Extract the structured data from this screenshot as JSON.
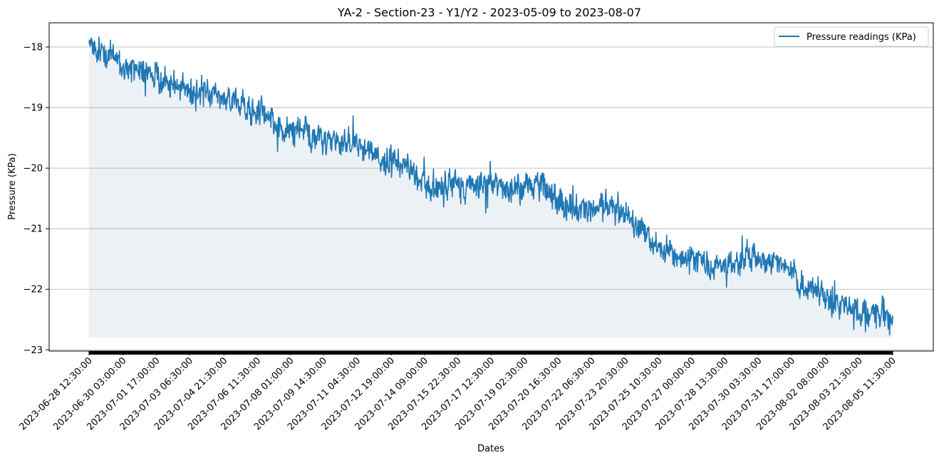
{
  "chart_data": {
    "type": "line",
    "title": "YA-2 - Section-23 - Y1/Y2 - 2023-05-09 to 2023-08-07",
    "xlabel": "Dates",
    "ylabel": "Pressure (KPa)",
    "ylim": [
      -23.02,
      -17.6
    ],
    "yticks": [
      -18,
      -19,
      -20,
      -21,
      -22,
      -23
    ],
    "ytick_labels": [
      "−18",
      "−19",
      "−20",
      "−21",
      "−22",
      "−23"
    ],
    "xlim": [
      "2023-06-28 12:30:00",
      "2023-08-05 11:30:00"
    ],
    "xtick_labels": [
      "2023-06-28 12:30:00",
      "2023-06-30 03:00:00",
      "2023-07-01 17:00:00",
      "2023-07-03 06:30:00",
      "2023-07-04 21:30:00",
      "2023-07-06 11:30:00",
      "2023-07-08 01:00:00",
      "2023-07-09 14:30:00",
      "2023-07-11 04:30:00",
      "2023-07-12 19:00:00",
      "2023-07-14 09:00:00",
      "2023-07-15 22:30:00",
      "2023-07-17 12:30:00",
      "2023-07-19 02:30:00",
      "2023-07-20 16:30:00",
      "2023-07-22 06:30:00",
      "2023-07-23 20:30:00",
      "2023-07-25 10:30:00",
      "2023-07-27 00:00:00",
      "2023-07-28 13:30:00",
      "2023-07-30 03:30:00",
      "2023-07-31 17:00:00",
      "2023-08-02 08:00:00",
      "2023-08-03 21:30:00",
      "2023-08-05 11:30:00"
    ],
    "fill_baseline": -22.8,
    "grid": "horizontal",
    "legend_position": "top-right",
    "series": [
      {
        "name": "Pressure readings (KPa)",
        "color": "#1f77b4",
        "x": [
          "2023-06-28 12:30:00",
          "2023-06-29 06:00:00",
          "2023-06-30 03:00:00",
          "2023-06-30 22:00:00",
          "2023-07-01 17:00:00",
          "2023-07-02 12:00:00",
          "2023-07-03 06:30:00",
          "2023-07-04 02:00:00",
          "2023-07-04 21:30:00",
          "2023-07-05 16:30:00",
          "2023-07-06 11:30:00",
          "2023-07-07 06:00:00",
          "2023-07-08 01:00:00",
          "2023-07-08 19:00:00",
          "2023-07-09 14:30:00",
          "2023-07-10 09:30:00",
          "2023-07-11 04:30:00",
          "2023-07-11 23:30:00",
          "2023-07-12 19:00:00",
          "2023-07-13 14:00:00",
          "2023-07-14 09:00:00",
          "2023-07-15 04:00:00",
          "2023-07-15 22:30:00",
          "2023-07-16 17:30:00",
          "2023-07-17 12:30:00",
          "2023-07-18 07:30:00",
          "2023-07-19 02:30:00",
          "2023-07-19 21:30:00",
          "2023-07-20 16:30:00",
          "2023-07-21 11:30:00",
          "2023-07-22 06:30:00",
          "2023-07-23 01:30:00",
          "2023-07-23 20:30:00",
          "2023-07-24 15:30:00",
          "2023-07-25 10:30:00",
          "2023-07-26 05:00:00",
          "2023-07-27 00:00:00",
          "2023-07-27 18:30:00",
          "2023-07-28 13:30:00",
          "2023-07-29 08:30:00",
          "2023-07-30 03:30:00",
          "2023-07-30 22:00:00",
          "2023-07-31 17:00:00",
          "2023-08-01 12:30:00",
          "2023-08-02 08:00:00",
          "2023-08-03 02:30:00",
          "2023-08-03 21:30:00",
          "2023-08-04 16:30:00",
          "2023-08-05 11:30:00"
        ],
        "y": [
          -17.95,
          -18.1,
          -18.25,
          -18.35,
          -18.5,
          -18.6,
          -18.7,
          -18.75,
          -18.8,
          -18.95,
          -19.05,
          -19.25,
          -19.4,
          -19.4,
          -19.5,
          -19.55,
          -19.6,
          -19.75,
          -19.85,
          -20.0,
          -20.3,
          -20.3,
          -20.25,
          -20.3,
          -20.25,
          -20.35,
          -20.25,
          -20.3,
          -20.55,
          -20.7,
          -20.6,
          -20.55,
          -20.75,
          -21.05,
          -21.35,
          -21.45,
          -21.45,
          -21.55,
          -21.6,
          -21.5,
          -21.5,
          -21.55,
          -21.75,
          -22.0,
          -22.15,
          -22.3,
          -22.35,
          -22.35,
          -22.55
        ]
      }
    ]
  }
}
